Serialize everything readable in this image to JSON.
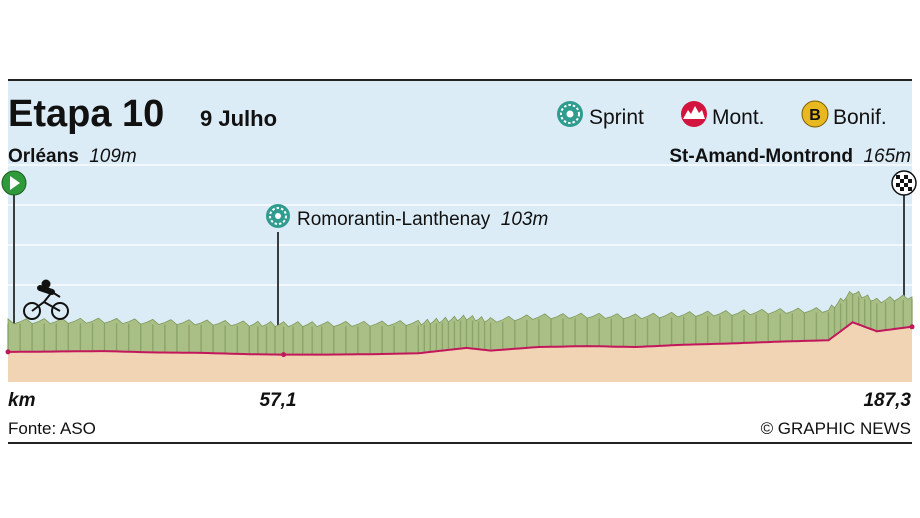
{
  "header": {
    "title": "Etapa 10",
    "date": "9 Julho"
  },
  "legend": {
    "sprint": "Sprint",
    "mountain": "Mont.",
    "bonus": "Bonif.",
    "bonus_badge": "B",
    "icons": [
      "sprint-icon",
      "mountain-icon",
      "bonus-icon"
    ]
  },
  "start": {
    "city": "Orléans",
    "altitude": "109m",
    "icon": "start-flag-icon"
  },
  "finish": {
    "city": "St-Amand-Montrond",
    "altitude": "165m",
    "icon": "finish-flag-icon"
  },
  "sprint_point": {
    "city": "Romorantin-Lanthenay",
    "altitude": "103m",
    "km_label": "57,1"
  },
  "axis": {
    "unit": "km",
    "end_label": "187,3"
  },
  "footer": {
    "source": "Fonte: ASO",
    "credit": "© GRAPHIC NEWS"
  },
  "colors": {
    "sky": "#dcecf6",
    "terrain_top": "#a9bf86",
    "terrain_side": "#7e9a5e",
    "ground": "#f0d4b4",
    "profile_line": "#c2185b",
    "sprint": "#2f9c8f",
    "start": "#2f9a3c",
    "bonus": "#e8b820"
  },
  "chart_data": {
    "type": "area",
    "xlabel": "km",
    "xlim": [
      0,
      187.3
    ],
    "x_ticks": [
      57.1,
      187.3
    ],
    "x_tick_labels": [
      "57,1",
      "187,3"
    ],
    "points_of_interest": [
      {
        "km": 0,
        "name": "Orléans",
        "altitude_m": 109,
        "kind": "start"
      },
      {
        "km": 57.1,
        "name": "Romorantin-Lanthenay",
        "altitude_m": 103,
        "kind": "sprint"
      },
      {
        "km": 187.3,
        "name": "St-Amand-Montrond",
        "altitude_m": 165,
        "kind": "finish"
      }
    ],
    "x": [
      0,
      10,
      20,
      30,
      40,
      50,
      57.1,
      65,
      75,
      85,
      90,
      95,
      100,
      110,
      120,
      130,
      140,
      150,
      160,
      170,
      175,
      180,
      187.3
    ],
    "y": [
      109,
      110,
      111,
      108,
      107,
      104,
      103,
      103,
      104,
      106,
      112,
      118,
      112,
      120,
      122,
      120,
      125,
      128,
      132,
      135,
      175,
      155,
      165
    ]
  }
}
